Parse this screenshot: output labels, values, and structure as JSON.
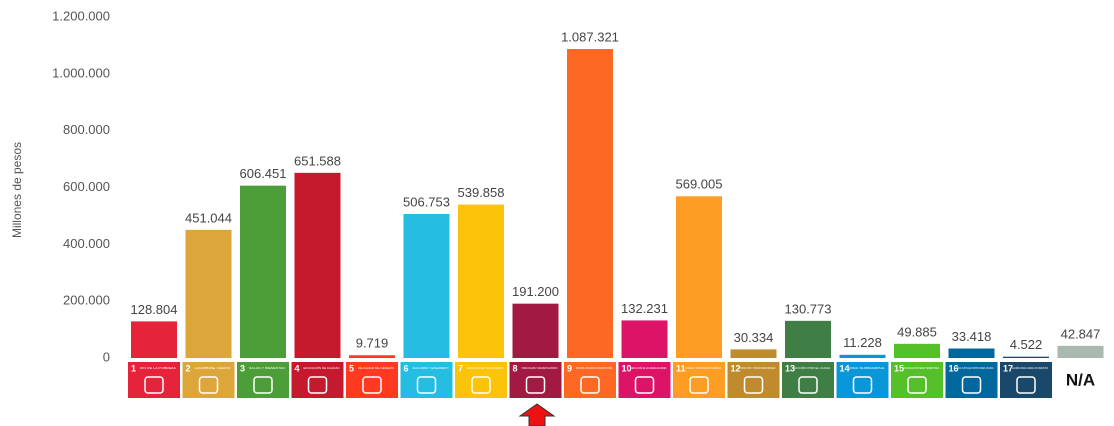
{
  "chart_data": {
    "type": "bar",
    "y_label": "Millones de pesos",
    "categories": [
      "1",
      "2",
      "3",
      "4",
      "5",
      "6",
      "7",
      "8",
      "9",
      "10",
      "11",
      "12",
      "13",
      "14",
      "15",
      "16",
      "17",
      "N/A"
    ],
    "category_names": [
      "FIN DE LA POBREZA",
      "HAMBRE CERO",
      "SALUD Y BIENESTAR",
      "EDUCACIÓN DE CALIDAD",
      "IGUALDAD DE GÉNERO",
      "AGUA LIMPIA Y SANEAMIENTO",
      "ENERGÍA ASEQUIBLE Y NO CONTAMINANTE",
      "TRABAJO DECENTE Y CRECIMIENTO ECONÓMICO",
      "INDUSTRIA, INNOVACIÓN E INFRAESTRUCTURA",
      "REDUCCIÓN DE LAS DESIGUALDADES",
      "CIUDADES Y COMUNIDADES SOSTENIBLES",
      "PRODUCCIÓN Y CONSUMO RESPONSABLES",
      "ACCIÓN POR EL CLIMA",
      "VIDA SUBMARINA",
      "VIDA DE ECOSISTEMAS TERRESTRES",
      "PAZ, JUSTICIA E INSTITUCIONES SÓLIDAS",
      "ALIANZAS PARA LOGRAR LOS OBJETIVOS",
      null
    ],
    "values": [
      128804,
      451044,
      606451,
      651588,
      9719,
      506753,
      539858,
      191200,
      1087321,
      132231,
      569005,
      30334,
      130773,
      11228,
      49885,
      33418,
      4522,
      42847
    ],
    "value_labels": [
      "128.804",
      "451.044",
      "606.451",
      "651.588",
      "9.719",
      "506.753",
      "539.858",
      "191.200",
      "1.087.321",
      "132.231",
      "569.005",
      "30.334",
      "130.773",
      "11.228",
      "49.885",
      "33.418",
      "4.522",
      "42.847"
    ],
    "colors": [
      "#e5243b",
      "#dda63a",
      "#4c9f38",
      "#c5192d",
      "#ff3a21",
      "#26bde2",
      "#fcc30b",
      "#a21942",
      "#fd6925",
      "#dd1367",
      "#fd9d24",
      "#bf8b2e",
      "#3f7e44",
      "#0a97d9",
      "#56c02b",
      "#00689d",
      "#19486a",
      "#a9b8b0"
    ],
    "ylim": [
      0,
      1200000
    ],
    "yticks": [
      0,
      {
        "value": 200000,
        "label": "200.000"
      },
      {
        "value": 400000,
        "label": "400.000"
      },
      {
        "value": 600000,
        "label": "600.000"
      },
      {
        "value": 800000,
        "label": "800.000"
      },
      {
        "value": 1000000,
        "label": "1.000.000"
      },
      {
        "value": 1200000,
        "label": "1.200.000"
      }
    ],
    "grid": false
  }
}
